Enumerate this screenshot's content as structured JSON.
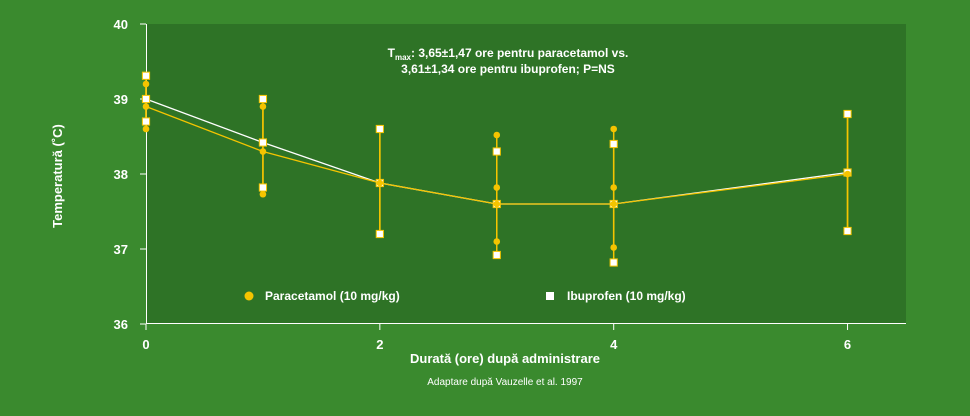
{
  "chart_data": {
    "type": "line",
    "xlabel": "Durată (ore) după administrare",
    "ylabel": "Temperatură (˚C)",
    "xlim": [
      0,
      6.5
    ],
    "ylim": [
      36,
      40
    ],
    "x_ticks": [
      0,
      2,
      4,
      6
    ],
    "y_ticks": [
      36,
      37,
      38,
      39,
      40
    ],
    "annotation": {
      "line1_prefix": "T",
      "line1_sub": "max",
      "line1_rest": ": 3,65±1,47 ore pentru paracetamol vs.",
      "line2": "3,61±1,34 ore pentru ibuprofen; P=NS"
    },
    "source_note": "Adaptare după Vauzelle et al. 1997",
    "series": [
      {
        "name": "Paracetamol (10 mg/kg)",
        "marker": "circle",
        "color": "#f5c400",
        "points": [
          {
            "x": 0,
            "y": 38.9,
            "low": 38.6,
            "high": 39.2
          },
          {
            "x": 1,
            "y": 38.3,
            "low": 37.73,
            "high": 38.9
          },
          {
            "x": 2,
            "y": 37.88,
            "low": 37.2,
            "high": 38.6
          },
          {
            "x": 3,
            "y": 37.6,
            "low": 37.1,
            "high": 38.52
          },
          {
            "x": 4,
            "y": 37.6,
            "low": 37.02,
            "high": 38.6
          },
          {
            "x": 6,
            "y": 38.0,
            "low": 37.24,
            "high": 38.8
          }
        ],
        "extra_markers": [
          {
            "x": 3,
            "y": 37.82
          },
          {
            "x": 4,
            "y": 37.82
          }
        ]
      },
      {
        "name": "Ibuprofen (10 mg/kg)",
        "marker": "square",
        "color": "#ffffff",
        "points": [
          {
            "x": 0,
            "y": 39.0,
            "low": 38.7,
            "high": 39.31
          },
          {
            "x": 1,
            "y": 38.42,
            "low": 37.82,
            "high": 39.0
          },
          {
            "x": 2,
            "y": 37.88,
            "low": 37.2,
            "high": 38.6
          },
          {
            "x": 3,
            "y": 37.6,
            "low": 36.92,
            "high": 38.3
          },
          {
            "x": 4,
            "y": 37.6,
            "low": 36.82,
            "high": 38.4
          },
          {
            "x": 6,
            "y": 38.02,
            "low": 37.24,
            "high": 38.8
          }
        ]
      }
    ]
  }
}
